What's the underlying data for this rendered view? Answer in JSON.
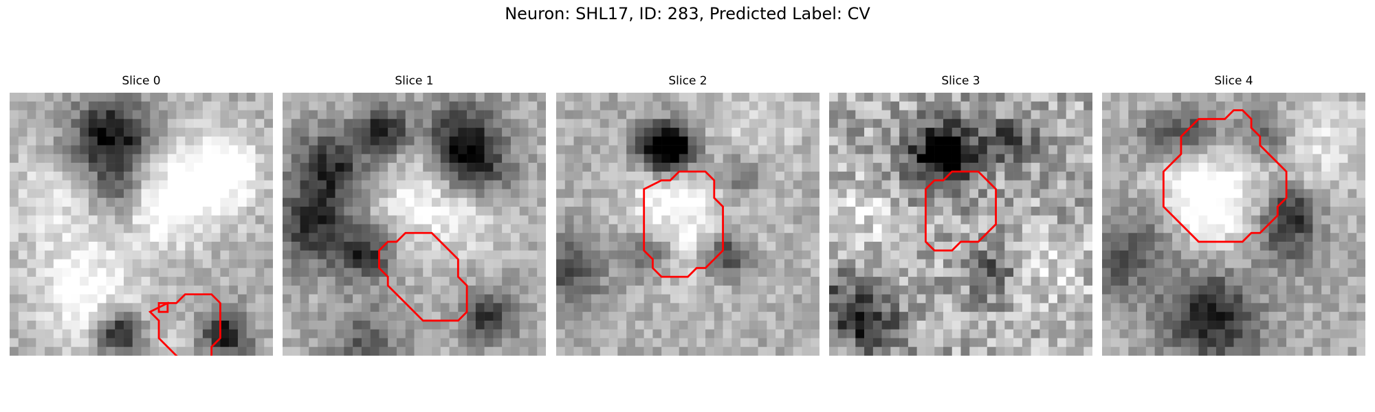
{
  "figure": {
    "suptitle": "Neuron: SHL17, ID: 283, Predicted Label: CV",
    "roi_color": "#ff0000",
    "colormap": "gray",
    "panels": [
      {
        "title": "Slice 0",
        "roi": [
          [
            18,
            24
          ],
          [
            18,
            25
          ],
          [
            17,
            25
          ],
          [
            17,
            24
          ],
          [
            18,
            24
          ],
          [
            19,
            24
          ],
          [
            20,
            23
          ],
          [
            23,
            23
          ],
          [
            24,
            24
          ],
          [
            24,
            28
          ],
          [
            23,
            29
          ],
          [
            23,
            30
          ],
          [
            22,
            31
          ],
          [
            20,
            31
          ],
          [
            19,
            30
          ],
          [
            17,
            28
          ],
          [
            17,
            26
          ],
          [
            16,
            25
          ]
        ],
        "blobs": [
          [
            1,
            8,
            22,
            4,
            0.35
          ],
          [
            1,
            4,
            12,
            4,
            0.2
          ],
          [
            1,
            14,
            30,
            5,
            0.15
          ],
          [
            1,
            21,
            10,
            4,
            0.25
          ],
          [
            1,
            24,
            8,
            3,
            0.3
          ],
          [
            -1,
            11,
            4,
            3,
            0.4
          ],
          [
            -1,
            11,
            6,
            3,
            0.3
          ],
          [
            -1,
            12,
            11,
            2,
            0.25
          ],
          [
            -1,
            12,
            27,
            2,
            0.7
          ],
          [
            -1,
            24,
            27,
            2,
            0.6
          ],
          [
            1,
            17,
            13,
            3,
            0.3
          ]
        ]
      },
      {
        "title": "Slice 1",
        "roi": [
          [
            11,
            18
          ],
          [
            12,
            17
          ],
          [
            13,
            17
          ],
          [
            14,
            16
          ],
          [
            17,
            16
          ],
          [
            18,
            17
          ],
          [
            20,
            19
          ],
          [
            20,
            21
          ],
          [
            21,
            22
          ],
          [
            21,
            25
          ],
          [
            20,
            26
          ],
          [
            19,
            26
          ],
          [
            16,
            26
          ],
          [
            14,
            24
          ],
          [
            12,
            22
          ],
          [
            12,
            21
          ],
          [
            11,
            20
          ]
        ],
        "blobs": [
          [
            -1,
            11,
            4,
            2,
            0.55
          ],
          [
            -1,
            3,
            15,
            3,
            0.5
          ],
          [
            -1,
            5,
            8,
            3,
            0.5
          ],
          [
            -1,
            9,
            18,
            2,
            0.5
          ],
          [
            -1,
            20,
            5,
            3,
            0.55
          ],
          [
            -1,
            21,
            9,
            3,
            0.45
          ],
          [
            -1,
            23,
            25,
            2,
            0.5
          ],
          [
            -1,
            9,
            28,
            3,
            0.3
          ],
          [
            1,
            16,
            11,
            4,
            0.3
          ],
          [
            1,
            21,
            13,
            3,
            0.25
          ]
        ]
      },
      {
        "title": "Slice 2",
        "roi": [
          [
            12,
            10
          ],
          [
            13,
            10
          ],
          [
            14,
            9
          ],
          [
            17,
            9
          ],
          [
            18,
            10
          ],
          [
            18,
            12
          ],
          [
            19,
            13
          ],
          [
            19,
            18
          ],
          [
            18,
            19
          ],
          [
            17,
            20
          ],
          [
            16,
            20
          ],
          [
            15,
            21
          ],
          [
            12,
            21
          ],
          [
            11,
            20
          ],
          [
            11,
            19
          ],
          [
            10,
            18
          ],
          [
            10,
            11
          ]
        ],
        "blobs": [
          [
            -1,
            13,
            6,
            2,
            0.7
          ],
          [
            -1,
            11,
            6,
            2,
            0.5
          ],
          [
            1,
            15,
            15,
            5,
            0.25
          ],
          [
            -1,
            19,
            18,
            2,
            0.55
          ],
          [
            -1,
            10,
            18,
            2,
            0.35
          ],
          [
            -1,
            1,
            20,
            3,
            0.35
          ],
          [
            1,
            12,
            10,
            3,
            0.2
          ],
          [
            -1,
            20,
            9,
            2,
            0.3
          ],
          [
            1,
            22,
            3,
            4,
            0.15
          ]
        ]
      },
      {
        "title": "Slice 3",
        "roi": [
          [
            11,
            11
          ],
          [
            12,
            10
          ],
          [
            13,
            10
          ],
          [
            14,
            9
          ],
          [
            17,
            9
          ],
          [
            18,
            10
          ],
          [
            19,
            11
          ],
          [
            19,
            15
          ],
          [
            18,
            16
          ],
          [
            17,
            17
          ],
          [
            15,
            17
          ],
          [
            14,
            18
          ],
          [
            12,
            18
          ],
          [
            11,
            17
          ]
        ],
        "blobs": [
          [
            -1,
            12,
            7,
            3,
            0.5
          ],
          [
            -1,
            13,
            6,
            2,
            0.4
          ],
          [
            -1,
            20,
            5,
            2,
            0.45
          ],
          [
            -1,
            2,
            24,
            3,
            0.4
          ],
          [
            -1,
            5,
            27,
            2,
            0.35
          ],
          [
            -1,
            18,
            20,
            2,
            0.3
          ],
          [
            1,
            3,
            14,
            3,
            0.2
          ],
          [
            1,
            25,
            20,
            3,
            0.2
          ]
        ]
      },
      {
        "title": "Slice 4",
        "roi": [
          [
            14,
            3
          ],
          [
            15,
            2
          ],
          [
            16,
            2
          ],
          [
            17,
            3
          ],
          [
            17,
            4
          ],
          [
            18,
            5
          ],
          [
            18,
            6
          ],
          [
            19,
            7
          ],
          [
            20,
            8
          ],
          [
            21,
            9
          ],
          [
            21,
            12
          ],
          [
            20,
            13
          ],
          [
            20,
            14
          ],
          [
            19,
            15
          ],
          [
            18,
            16
          ],
          [
            17,
            16
          ],
          [
            16,
            17
          ],
          [
            11,
            17
          ],
          [
            10,
            16
          ],
          [
            8,
            14
          ],
          [
            7,
            13
          ],
          [
            7,
            9
          ],
          [
            8,
            8
          ],
          [
            9,
            7
          ],
          [
            9,
            5
          ],
          [
            10,
            4
          ],
          [
            11,
            3
          ]
        ],
        "blobs": [
          [
            1,
            11,
            12,
            4,
            0.5
          ],
          [
            -1,
            10,
            4,
            2,
            0.35
          ],
          [
            -1,
            6,
            5,
            2,
            0.3
          ],
          [
            -1,
            18,
            4,
            2,
            0.35
          ],
          [
            -1,
            21,
            13,
            2,
            0.4
          ],
          [
            -1,
            20,
            17,
            3,
            0.35
          ],
          [
            -1,
            6,
            15,
            3,
            0.25
          ],
          [
            -1,
            12,
            25,
            4,
            0.55
          ],
          [
            -1,
            1,
            19,
            3,
            0.3
          ],
          [
            1,
            25,
            5,
            4,
            0.2
          ],
          [
            1,
            18,
            20,
            3,
            0.15
          ]
        ]
      }
    ]
  }
}
